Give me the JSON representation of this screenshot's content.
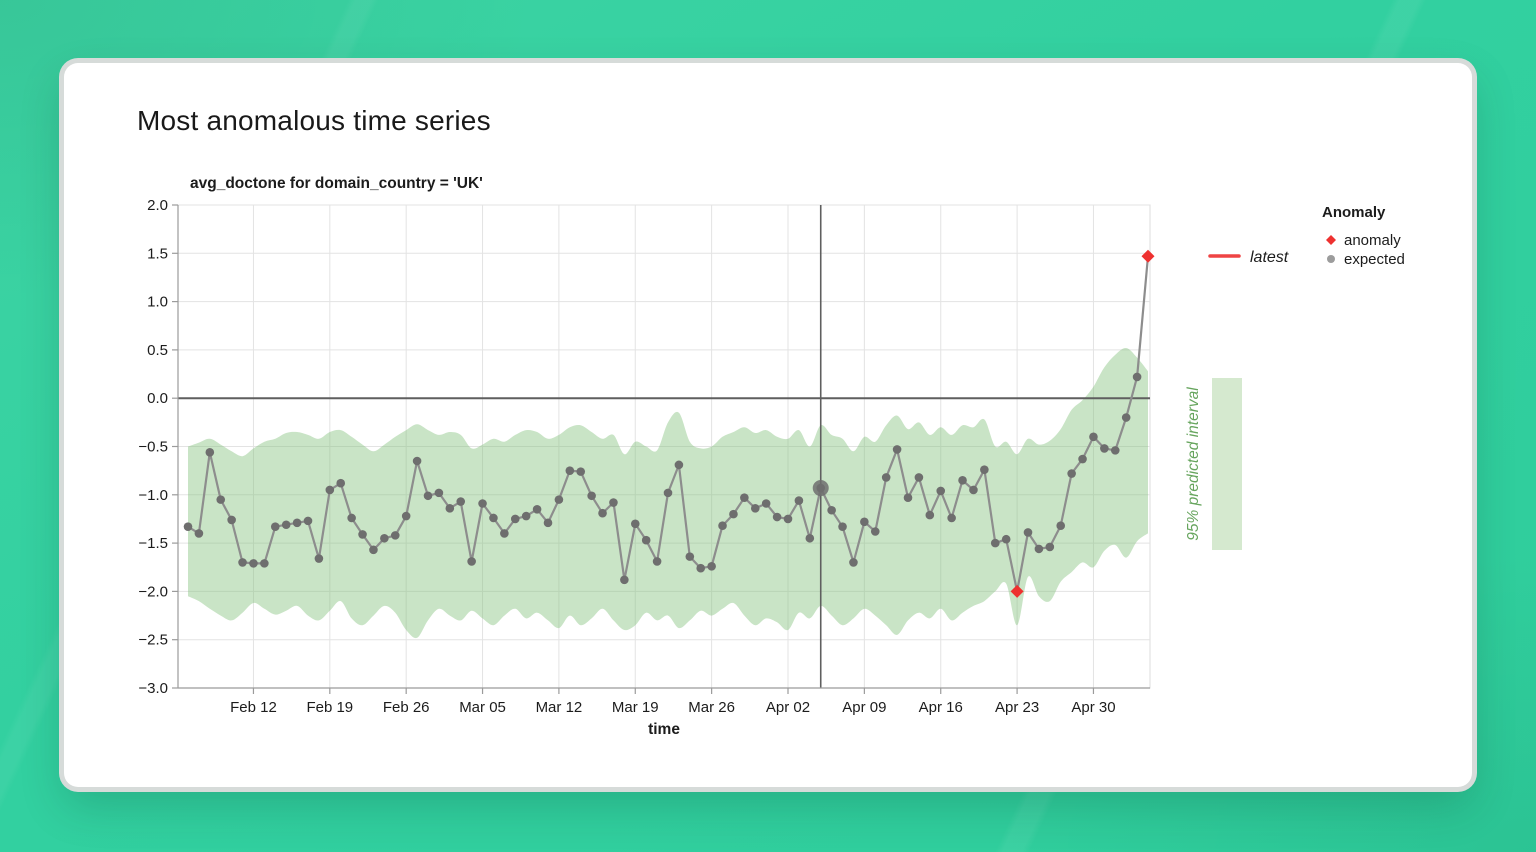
{
  "page": {
    "title": "Most anomalous time series"
  },
  "chart_data": {
    "type": "line",
    "title": "avg_doctone for domain_country = 'UK'",
    "xlabel": "time",
    "ylabel": "",
    "ylim": [
      -3.0,
      2.0
    ],
    "y_ticks": [
      2.0,
      1.5,
      1.0,
      0.5,
      0.0,
      -0.5,
      -1.0,
      -1.5,
      -2.0,
      -2.5,
      -3.0
    ],
    "x_tick_labels": [
      "Feb 12",
      "Feb 19",
      "Feb 26",
      "Mar 05",
      "Mar 12",
      "Mar 19",
      "Mar 26",
      "Apr 02",
      "Apr 09",
      "Apr 16",
      "Apr 23",
      "Apr 30"
    ],
    "grid": true,
    "zero_line": 0,
    "x": [
      "Feb 06",
      "Feb 07",
      "Feb 08",
      "Feb 09",
      "Feb 10",
      "Feb 11",
      "Feb 12",
      "Feb 13",
      "Feb 14",
      "Feb 15",
      "Feb 16",
      "Feb 17",
      "Feb 18",
      "Feb 19",
      "Feb 20",
      "Feb 21",
      "Feb 22",
      "Feb 23",
      "Feb 24",
      "Feb 25",
      "Feb 26",
      "Feb 27",
      "Feb 28",
      "Mar 01",
      "Mar 02",
      "Mar 03",
      "Mar 04",
      "Mar 05",
      "Mar 06",
      "Mar 07",
      "Mar 08",
      "Mar 09",
      "Mar 10",
      "Mar 11",
      "Mar 12",
      "Mar 13",
      "Mar 14",
      "Mar 15",
      "Mar 16",
      "Mar 17",
      "Mar 18",
      "Mar 19",
      "Mar 20",
      "Mar 21",
      "Mar 22",
      "Mar 23",
      "Mar 24",
      "Mar 25",
      "Mar 26",
      "Mar 27",
      "Mar 28",
      "Mar 29",
      "Mar 30",
      "Mar 31",
      "Apr 01",
      "Apr 02",
      "Apr 03",
      "Apr 04",
      "Apr 05",
      "Apr 06",
      "Apr 07",
      "Apr 08",
      "Apr 09",
      "Apr 10",
      "Apr 11",
      "Apr 12",
      "Apr 13",
      "Apr 14",
      "Apr 15",
      "Apr 16",
      "Apr 17",
      "Apr 18",
      "Apr 19",
      "Apr 20",
      "Apr 21",
      "Apr 22",
      "Apr 23",
      "Apr 24",
      "Apr 25",
      "Apr 26",
      "Apr 27",
      "Apr 28",
      "Apr 29",
      "Apr 30",
      "May 01",
      "May 02",
      "May 03",
      "May 04",
      "May 05"
    ],
    "series": [
      {
        "name": "expected",
        "values": [
          -1.33,
          -1.4,
          -0.56,
          -1.05,
          -1.26,
          -1.7,
          -1.71,
          -1.71,
          -1.33,
          -1.31,
          -1.29,
          -1.27,
          -1.66,
          -0.95,
          -0.88,
          -1.24,
          -1.41,
          -1.57,
          -1.45,
          -1.42,
          -1.22,
          -0.65,
          -1.01,
          -0.98,
          -1.14,
          -1.07,
          -1.69,
          -1.09,
          -1.24,
          -1.4,
          -1.25,
          -1.22,
          -1.15,
          -1.29,
          -1.05,
          -0.75,
          -0.76,
          -1.01,
          -1.19,
          -1.08,
          -1.88,
          -1.3,
          -1.47,
          -1.69,
          -0.98,
          -0.69,
          -1.64,
          -1.76,
          -1.74,
          -1.32,
          -1.2,
          -1.03,
          -1.14,
          -1.09,
          -1.23,
          -1.25,
          -1.06,
          -1.45,
          -0.93,
          -1.16,
          -1.33,
          -1.7,
          -1.28,
          -1.38,
          -0.82,
          -0.53,
          -1.03,
          -0.82,
          -1.21,
          -0.96,
          -1.24,
          -0.85,
          -0.95,
          -0.74,
          -1.5,
          -1.46,
          -2.0,
          -1.39,
          -1.56,
          -1.54,
          -1.32,
          -0.78,
          -0.63,
          -0.4,
          -0.52,
          -0.54,
          -0.2,
          0.22,
          1.47
        ]
      }
    ],
    "band": {
      "name": "95% predicted interval",
      "upper": [
        -0.5,
        -0.46,
        -0.42,
        -0.48,
        -0.55,
        -0.6,
        -0.52,
        -0.45,
        -0.42,
        -0.36,
        -0.35,
        -0.38,
        -0.42,
        -0.35,
        -0.33,
        -0.4,
        -0.48,
        -0.55,
        -0.48,
        -0.4,
        -0.33,
        -0.27,
        -0.33,
        -0.38,
        -0.35,
        -0.38,
        -0.52,
        -0.48,
        -0.42,
        -0.45,
        -0.38,
        -0.33,
        -0.35,
        -0.42,
        -0.38,
        -0.3,
        -0.28,
        -0.35,
        -0.42,
        -0.38,
        -0.58,
        -0.45,
        -0.5,
        -0.54,
        -0.25,
        -0.15,
        -0.45,
        -0.52,
        -0.5,
        -0.4,
        -0.35,
        -0.3,
        -0.36,
        -0.33,
        -0.4,
        -0.42,
        -0.33,
        -0.5,
        -0.28,
        -0.38,
        -0.42,
        -0.55,
        -0.4,
        -0.45,
        -0.28,
        -0.18,
        -0.32,
        -0.25,
        -0.38,
        -0.3,
        -0.38,
        -0.28,
        -0.3,
        -0.22,
        -0.5,
        -0.45,
        -0.58,
        -0.42,
        -0.48,
        -0.44,
        -0.32,
        -0.12,
        -0.02,
        0.12,
        0.32,
        0.45,
        0.52,
        0.42,
        0.28
      ],
      "lower": [
        -2.05,
        -2.1,
        -2.18,
        -2.25,
        -2.3,
        -2.22,
        -2.12,
        -2.18,
        -2.24,
        -2.2,
        -2.15,
        -2.25,
        -2.3,
        -2.2,
        -2.1,
        -2.28,
        -2.35,
        -2.25,
        -2.15,
        -2.22,
        -2.4,
        -2.48,
        -2.3,
        -2.18,
        -2.25,
        -2.3,
        -2.2,
        -2.28,
        -2.35,
        -2.25,
        -2.18,
        -2.28,
        -2.22,
        -2.3,
        -2.38,
        -2.25,
        -2.35,
        -2.28,
        -2.18,
        -2.3,
        -2.4,
        -2.35,
        -2.22,
        -2.3,
        -2.25,
        -2.38,
        -2.3,
        -2.2,
        -2.25,
        -2.18,
        -2.12,
        -2.25,
        -2.35,
        -2.28,
        -2.32,
        -2.4,
        -2.22,
        -2.28,
        -2.15,
        -2.25,
        -2.35,
        -2.28,
        -2.18,
        -2.25,
        -2.35,
        -2.45,
        -2.3,
        -2.22,
        -2.28,
        -2.18,
        -2.3,
        -2.22,
        -2.15,
        -2.1,
        -2.0,
        -1.92,
        -2.35,
        -1.85,
        -2.05,
        -2.1,
        -1.9,
        -1.8,
        -1.7,
        -1.75,
        -1.58,
        -1.52,
        -1.65,
        -1.48,
        -1.4
      ]
    },
    "anomalies": [
      {
        "x": "Apr 23",
        "value": -2.0
      },
      {
        "x": "May 05",
        "value": 1.47
      }
    ],
    "highlight_point": {
      "x": "Apr 05",
      "value": -0.93
    },
    "reference_line_x": "Apr 05",
    "legend": {
      "latest_label": "latest",
      "anomaly_title": "Anomaly",
      "anomaly_label": "anomaly",
      "expected_label": "expected",
      "band_label": "95% predicted interval"
    },
    "colors": {
      "band": "#7fbe76",
      "band_solid": "#d5e9cf",
      "band_label": "#67a55e",
      "line": "#8d8d8d",
      "point": "#6e6e6e",
      "legend_point": "#9c9c9c",
      "anomaly": "#ee3130",
      "latest": "#ef4444",
      "zero_line": "#5f5f5f",
      "grid": "#e3e3e3",
      "border": "#dcdcdc",
      "axis": "#9b9b9b",
      "text": "#1c1c1c"
    }
  }
}
